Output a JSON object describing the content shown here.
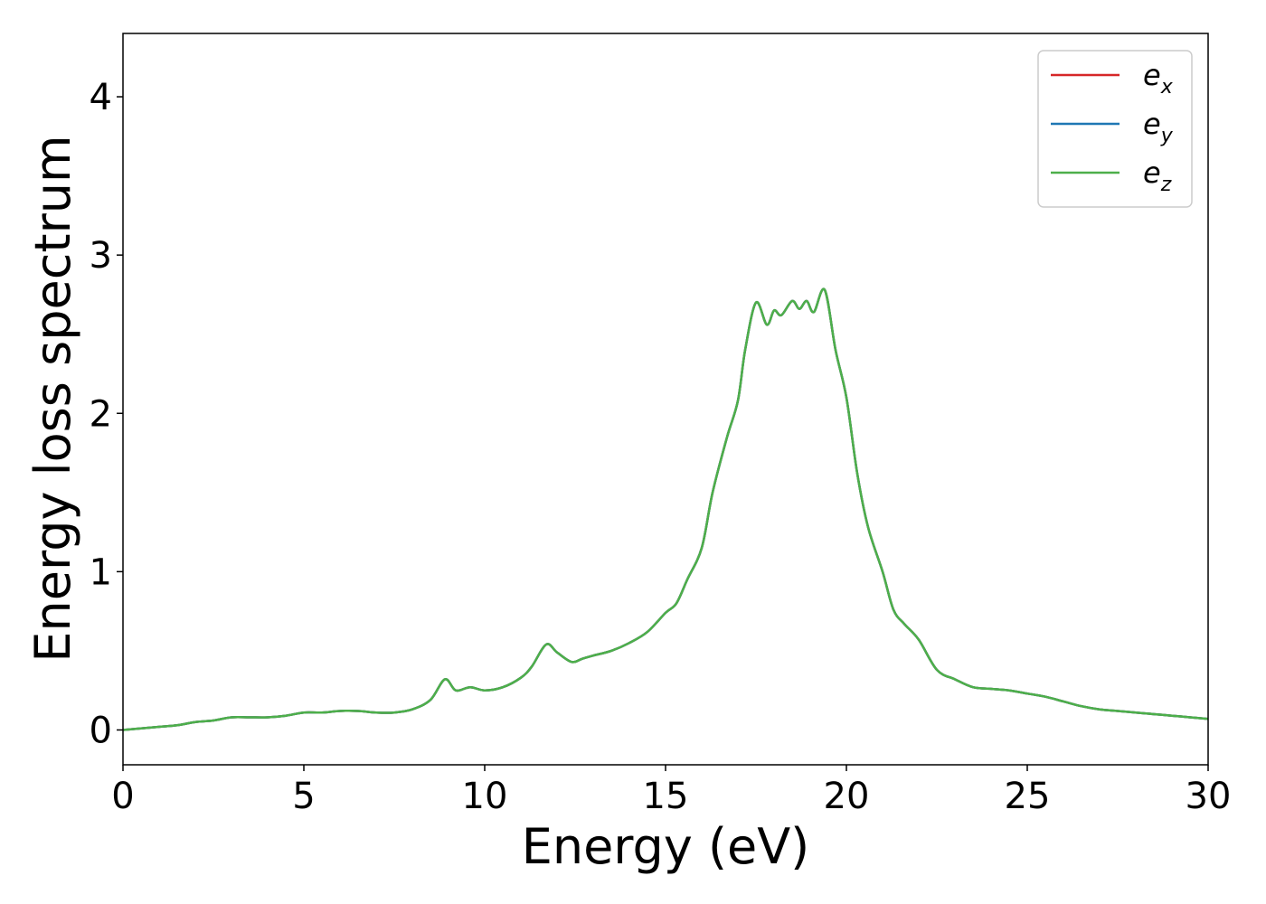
{
  "chart_data": {
    "type": "line",
    "xlabel": "Energy (eV)",
    "ylabel": "Energy loss spectrum",
    "xlim": [
      0,
      30
    ],
    "ylim": [
      -0.22,
      4.4
    ],
    "xticks": [
      0,
      5,
      10,
      15,
      20,
      25,
      30
    ],
    "xtick_labels": [
      "0",
      "5",
      "10",
      "15",
      "20",
      "25",
      "30"
    ],
    "yticks": [
      0,
      1,
      2,
      3,
      4
    ],
    "ytick_labels": [
      "0",
      "1",
      "2",
      "3",
      "4"
    ],
    "grid": false,
    "legend_position": "top-right",
    "x": [
      0,
      0.5,
      1,
      1.5,
      2,
      2.5,
      3,
      3.5,
      4,
      4.5,
      5,
      5.5,
      6,
      6.5,
      7,
      7.5,
      8,
      8.5,
      8.9,
      9.2,
      9.6,
      10,
      10.5,
      11,
      11.3,
      11.7,
      12,
      12.4,
      12.7,
      13,
      13.5,
      14,
      14.5,
      15,
      15.3,
      15.6,
      16,
      16.3,
      16.7,
      17,
      17.2,
      17.5,
      17.8,
      18,
      18.2,
      18.5,
      18.7,
      18.9,
      19.1,
      19.4,
      19.7,
      20,
      20.3,
      20.6,
      21,
      21.3,
      21.6,
      22,
      22.5,
      23,
      23.5,
      24,
      24.5,
      25,
      25.5,
      26,
      26.5,
      27,
      27.5,
      28,
      28.5,
      29,
      29.5,
      30
    ],
    "series": [
      {
        "name": "e_x",
        "label_base": "e",
        "label_sub": "x",
        "color": "#d62728",
        "values": [
          0.0,
          0.01,
          0.02,
          0.03,
          0.05,
          0.06,
          0.08,
          0.08,
          0.08,
          0.09,
          0.11,
          0.11,
          0.12,
          0.12,
          0.11,
          0.11,
          0.13,
          0.19,
          0.32,
          0.25,
          0.27,
          0.25,
          0.27,
          0.33,
          0.4,
          0.54,
          0.49,
          0.43,
          0.45,
          0.47,
          0.5,
          0.55,
          0.62,
          0.74,
          0.8,
          0.95,
          1.15,
          1.5,
          1.85,
          2.08,
          2.4,
          2.7,
          2.56,
          2.65,
          2.62,
          2.71,
          2.66,
          2.71,
          2.64,
          2.78,
          2.4,
          2.1,
          1.62,
          1.28,
          1.0,
          0.76,
          0.67,
          0.57,
          0.38,
          0.32,
          0.27,
          0.26,
          0.25,
          0.23,
          0.21,
          0.18,
          0.15,
          0.13,
          0.12,
          0.11,
          0.1,
          0.09,
          0.08,
          0.07
        ]
      },
      {
        "name": "e_y",
        "label_base": "e",
        "label_sub": "y",
        "color": "#1f77b4",
        "values": [
          0.0,
          0.01,
          0.02,
          0.03,
          0.05,
          0.06,
          0.08,
          0.08,
          0.08,
          0.09,
          0.11,
          0.11,
          0.12,
          0.12,
          0.11,
          0.11,
          0.13,
          0.19,
          0.32,
          0.25,
          0.27,
          0.25,
          0.27,
          0.33,
          0.4,
          0.54,
          0.49,
          0.43,
          0.45,
          0.47,
          0.5,
          0.55,
          0.62,
          0.74,
          0.8,
          0.95,
          1.15,
          1.5,
          1.85,
          2.08,
          2.4,
          2.7,
          2.56,
          2.65,
          2.62,
          2.71,
          2.66,
          2.71,
          2.64,
          2.78,
          2.4,
          2.1,
          1.62,
          1.28,
          1.0,
          0.76,
          0.67,
          0.57,
          0.38,
          0.32,
          0.27,
          0.26,
          0.25,
          0.23,
          0.21,
          0.18,
          0.15,
          0.13,
          0.12,
          0.11,
          0.1,
          0.09,
          0.08,
          0.07
        ]
      },
      {
        "name": "e_z",
        "label_base": "e",
        "label_sub": "z",
        "color": "#4daf4a",
        "values": [
          0.0,
          0.01,
          0.02,
          0.03,
          0.05,
          0.06,
          0.08,
          0.08,
          0.08,
          0.09,
          0.11,
          0.11,
          0.12,
          0.12,
          0.11,
          0.11,
          0.13,
          0.19,
          0.32,
          0.25,
          0.27,
          0.25,
          0.27,
          0.33,
          0.4,
          0.54,
          0.49,
          0.43,
          0.45,
          0.47,
          0.5,
          0.55,
          0.62,
          0.74,
          0.8,
          0.95,
          1.15,
          1.5,
          1.85,
          2.08,
          2.4,
          2.7,
          2.56,
          2.65,
          2.62,
          2.71,
          2.66,
          2.71,
          2.64,
          2.78,
          2.4,
          2.1,
          1.62,
          1.28,
          1.0,
          0.76,
          0.67,
          0.57,
          0.38,
          0.32,
          0.27,
          0.26,
          0.25,
          0.23,
          0.21,
          0.18,
          0.15,
          0.13,
          0.12,
          0.11,
          0.1,
          0.09,
          0.08,
          0.07
        ]
      }
    ]
  }
}
